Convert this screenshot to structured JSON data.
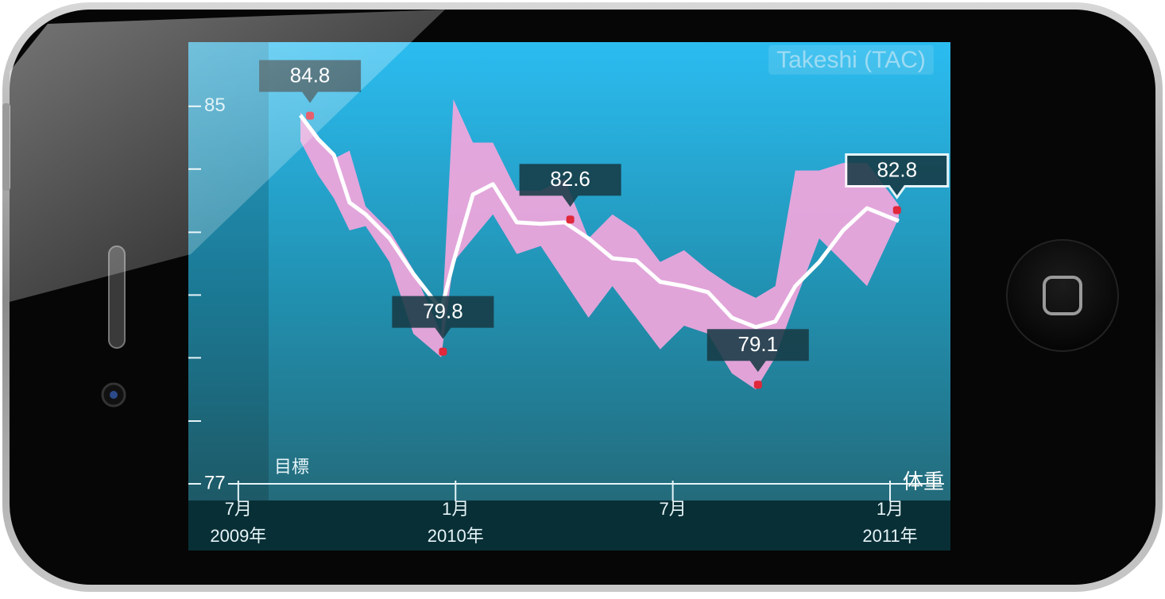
{
  "chart_data": {
    "type": "band-line",
    "title": "Takeshi (TAC)",
    "goal_label": "目標",
    "value_label": "体重",
    "x": [
      2009.643,
      2009.683,
      2009.72,
      2009.756,
      2009.793,
      2009.848,
      2009.903,
      2009.967,
      2009.995,
      2010.04,
      2010.086,
      2010.141,
      2010.196,
      2010.251,
      2010.306,
      2010.361,
      2010.416,
      2010.471,
      2010.526,
      2010.581,
      2010.636,
      2010.691,
      2010.736,
      2010.782,
      2010.837,
      2010.892,
      2010.947,
      2011.02
    ],
    "band": {
      "color": "#f2a6dc",
      "upper": [
        84.87,
        84.39,
        83.89,
        84.06,
        82.88,
        82.37,
        81.53,
        80.18,
        85.15,
        84.23,
        84.23,
        83.21,
        83.21,
        83.47,
        82.2,
        82.71,
        82.37,
        81.7,
        81.95,
        81.53,
        81.19,
        80.94,
        81.19,
        83.64,
        83.64,
        83.8,
        83.8,
        82.91
      ],
      "lower": [
        84.26,
        83.55,
        83.05,
        82.37,
        82.46,
        81.7,
        80.18,
        79.68,
        81.7,
        82.2,
        82.71,
        81.87,
        82.04,
        81.28,
        80.52,
        81.19,
        80.52,
        79.85,
        80.35,
        80.18,
        79.34,
        79.0,
        79.68,
        80.86,
        82.2,
        81.7,
        81.19,
        82.63
      ]
    },
    "trend": {
      "color": "#ffffff",
      "values": [
        84.81,
        84.31,
        83.97,
        82.96,
        82.71,
        82.2,
        81.45,
        80.69,
        81.7,
        83.13,
        83.35,
        82.54,
        82.51,
        82.54,
        82.2,
        81.78,
        81.73,
        81.28,
        81.19,
        81.06,
        80.52,
        80.32,
        80.44,
        81.19,
        81.7,
        82.37,
        82.84,
        82.57
      ]
    },
    "markers": {
      "color": "#e0283a",
      "x": [
        2009.665,
        2009.971,
        2010.264,
        2010.696,
        2011.016
      ],
      "values": [
        84.8,
        79.8,
        82.6,
        79.1,
        82.8
      ],
      "selected": 4
    },
    "xlim": [
      2009.385,
      2011.139
    ],
    "ylim": [
      77,
      86.36
    ],
    "xticks": [
      {
        "value": 2009.5,
        "label": "7月"
      },
      {
        "value": 2010.0,
        "label": "1月"
      },
      {
        "value": 2010.5,
        "label": "7月"
      },
      {
        "value": 2011.0,
        "label": "1月"
      }
    ],
    "year_labels": [
      {
        "value": 2009.5,
        "label": "2009年"
      },
      {
        "value": 2010.0,
        "label": "2010年"
      },
      {
        "value": 2011.0,
        "label": "2011年"
      }
    ],
    "yticks": [
      77,
      85
    ],
    "minor_yticks": [
      78.33,
      79.67,
      81,
      82.33,
      83.67
    ]
  }
}
